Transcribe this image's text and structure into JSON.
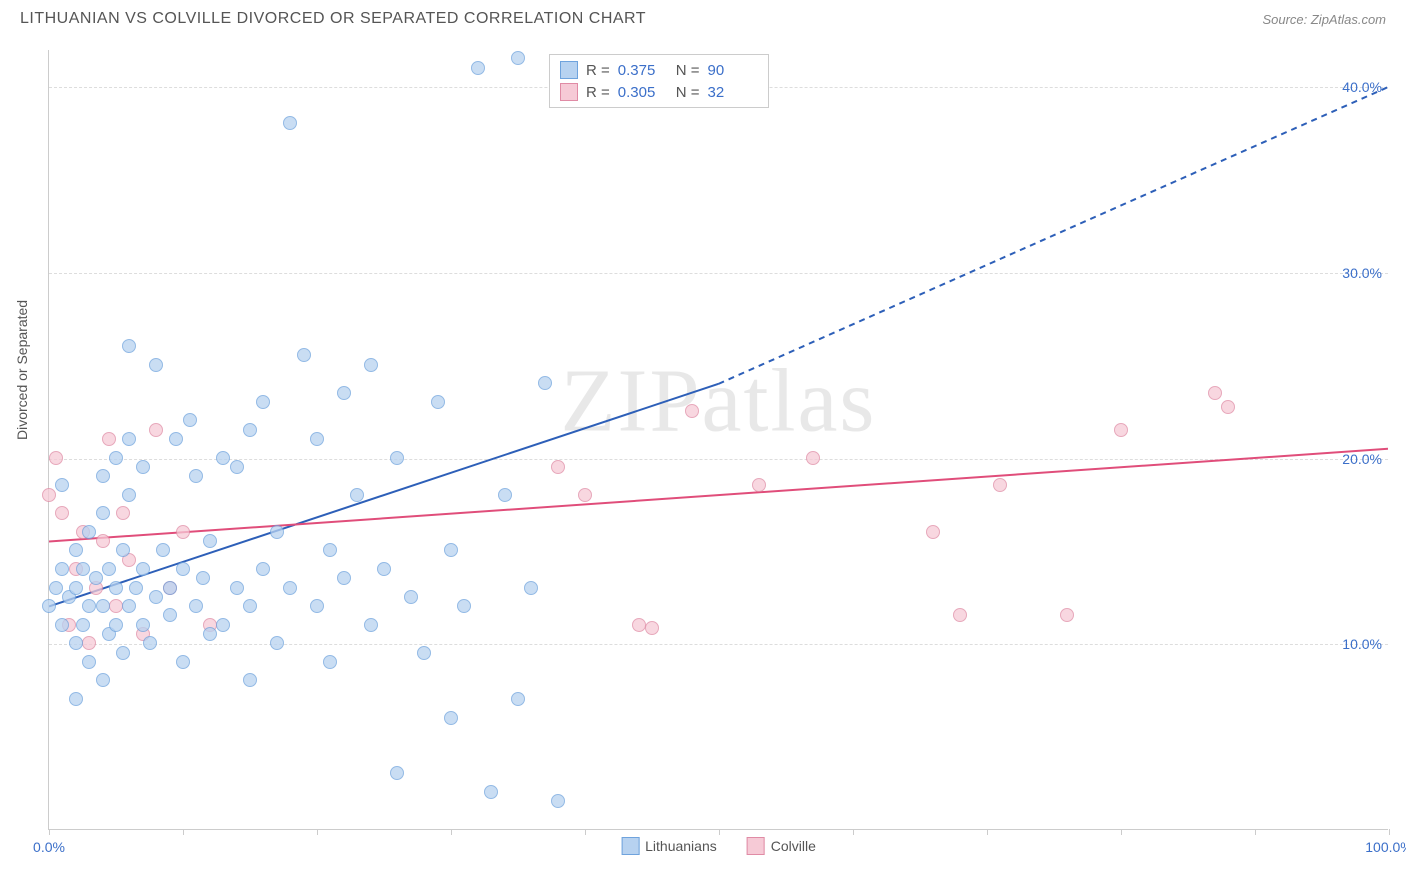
{
  "title": "LITHUANIAN VS COLVILLE DIVORCED OR SEPARATED CORRELATION CHART",
  "source": "Source: ZipAtlas.com",
  "ylabel": "Divorced or Separated",
  "watermark": {
    "bold": "ZIP",
    "rest": "atlas"
  },
  "chart": {
    "type": "scatter",
    "xlim": [
      0,
      100
    ],
    "ylim": [
      0,
      42
    ],
    "yticks": [
      10,
      20,
      30,
      40
    ],
    "ytick_labels": [
      "10.0%",
      "20.0%",
      "30.0%",
      "40.0%"
    ],
    "xticks": [
      0,
      10,
      20,
      30,
      40,
      50,
      60,
      70,
      80,
      90,
      100
    ],
    "xtick_labels_shown": {
      "0": "0.0%",
      "100": "100.0%"
    },
    "background_color": "#ffffff",
    "grid_color": "#dddddd",
    "series": {
      "lithuanians": {
        "label": "Lithuanians",
        "marker_fill": "#b7d2f0",
        "marker_stroke": "#6fa3dd",
        "marker_size": 14,
        "line_color": "#2d5fb8",
        "line_width": 2,
        "R": "0.375",
        "N": "90",
        "trend": {
          "x1": 0,
          "y1": 12,
          "x2_solid": 50,
          "y2_solid": 24,
          "x2_dash": 100,
          "y2_dash": 40
        },
        "points": [
          [
            0,
            12
          ],
          [
            0.5,
            13
          ],
          [
            1,
            11
          ],
          [
            1,
            14
          ],
          [
            1.5,
            12.5
          ],
          [
            2,
            13
          ],
          [
            2,
            10
          ],
          [
            2,
            15
          ],
          [
            2.5,
            14
          ],
          [
            2.5,
            11
          ],
          [
            3,
            12
          ],
          [
            3,
            16
          ],
          [
            3,
            9
          ],
          [
            3.5,
            13.5
          ],
          [
            4,
            12
          ],
          [
            4,
            17
          ],
          [
            4,
            19
          ],
          [
            4.5,
            10.5
          ],
          [
            4.5,
            14
          ],
          [
            5,
            11
          ],
          [
            5,
            13
          ],
          [
            5,
            20
          ],
          [
            5.5,
            9.5
          ],
          [
            5.5,
            15
          ],
          [
            6,
            12
          ],
          [
            6,
            21
          ],
          [
            6,
            18
          ],
          [
            6.5,
            13
          ],
          [
            7,
            11
          ],
          [
            7,
            14
          ],
          [
            7,
            19.5
          ],
          [
            7.5,
            10
          ],
          [
            8,
            12.5
          ],
          [
            8,
            25
          ],
          [
            8.5,
            15
          ],
          [
            9,
            13
          ],
          [
            9,
            11.5
          ],
          [
            9.5,
            21
          ],
          [
            10,
            14
          ],
          [
            10,
            9
          ],
          [
            10.5,
            22
          ],
          [
            11,
            12
          ],
          [
            11,
            19
          ],
          [
            11.5,
            13.5
          ],
          [
            12,
            10.5
          ],
          [
            12,
            15.5
          ],
          [
            13,
            20
          ],
          [
            13,
            11
          ],
          [
            14,
            13
          ],
          [
            14,
            19.5
          ],
          [
            15,
            12
          ],
          [
            15,
            21.5
          ],
          [
            15,
            8
          ],
          [
            16,
            14
          ],
          [
            16,
            23
          ],
          [
            17,
            16
          ],
          [
            17,
            10
          ],
          [
            18,
            13
          ],
          [
            18,
            38
          ],
          [
            19,
            25.5
          ],
          [
            20,
            12
          ],
          [
            20,
            21
          ],
          [
            21,
            9
          ],
          [
            21,
            15
          ],
          [
            22,
            13.5
          ],
          [
            22,
            23.5
          ],
          [
            23,
            18
          ],
          [
            24,
            11
          ],
          [
            24,
            25
          ],
          [
            25,
            14
          ],
          [
            26,
            3
          ],
          [
            26,
            20
          ],
          [
            27,
            12.5
          ],
          [
            28,
            9.5
          ],
          [
            29,
            23
          ],
          [
            30,
            15
          ],
          [
            30,
            6
          ],
          [
            31,
            12
          ],
          [
            32,
            41
          ],
          [
            33,
            2
          ],
          [
            34,
            18
          ],
          [
            35,
            7
          ],
          [
            35,
            41.5
          ],
          [
            36,
            13
          ],
          [
            37,
            24
          ],
          [
            38,
            1.5
          ],
          [
            2,
            7
          ],
          [
            4,
            8
          ],
          [
            6,
            26
          ],
          [
            1,
            18.5
          ]
        ]
      },
      "colville": {
        "label": "Colville",
        "marker_fill": "#f6cad6",
        "marker_stroke": "#e08ba5",
        "marker_size": 14,
        "line_color": "#e04d7a",
        "line_width": 2,
        "R": "0.305",
        "N": "32",
        "trend": {
          "x1": 0,
          "y1": 15.5,
          "x2_solid": 100,
          "y2_solid": 20.5
        },
        "points": [
          [
            0,
            18
          ],
          [
            0.5,
            20
          ],
          [
            1,
            17
          ],
          [
            1.5,
            11
          ],
          [
            2,
            14
          ],
          [
            2.5,
            16
          ],
          [
            3,
            10
          ],
          [
            3.5,
            13
          ],
          [
            4,
            15.5
          ],
          [
            4.5,
            21
          ],
          [
            5,
            12
          ],
          [
            5.5,
            17
          ],
          [
            6,
            14.5
          ],
          [
            7,
            10.5
          ],
          [
            8,
            21.5
          ],
          [
            9,
            13
          ],
          [
            10,
            16
          ],
          [
            12,
            11
          ],
          [
            38,
            19.5
          ],
          [
            40,
            18
          ],
          [
            44,
            11
          ],
          [
            48,
            22.5
          ],
          [
            53,
            18.5
          ],
          [
            57,
            20
          ],
          [
            66,
            16
          ],
          [
            68,
            11.5
          ],
          [
            71,
            18.5
          ],
          [
            76,
            11.5
          ],
          [
            80,
            21.5
          ],
          [
            87,
            23.5
          ],
          [
            88,
            22.7
          ],
          [
            45,
            10.8
          ]
        ]
      }
    }
  }
}
